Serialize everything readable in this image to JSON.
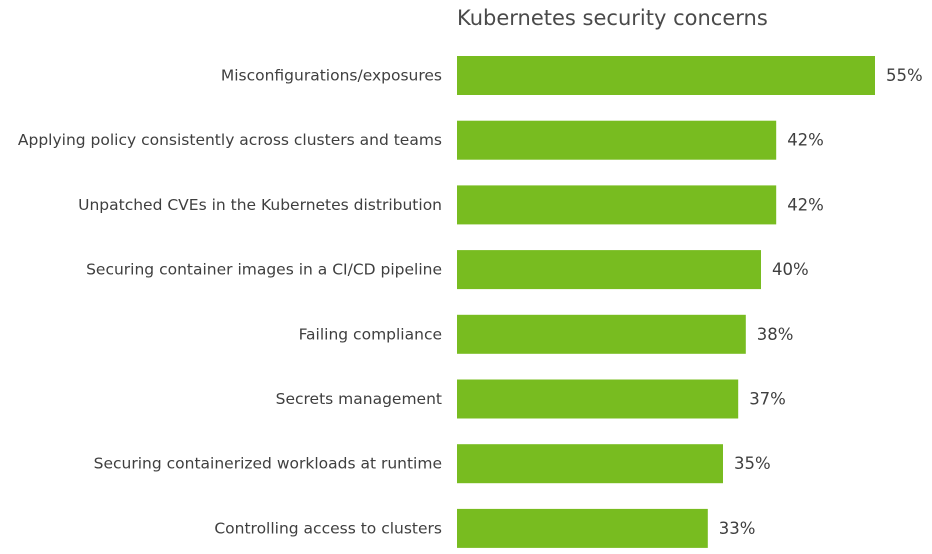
{
  "chart_data": {
    "type": "bar",
    "orientation": "horizontal",
    "title": "Kubernetes security concerns",
    "categories": [
      "Misconfigurations/exposures",
      "Applying policy consistently across clusters and teams",
      "Unpatched CVEs in the Kubernetes distribution",
      "Securing container images in a CI/CD pipeline",
      "Failing compliance",
      "Secrets management",
      "Securing containerized workloads at runtime",
      "Controlling access to clusters"
    ],
    "values": [
      55,
      42,
      42,
      40,
      38,
      37,
      35,
      33
    ],
    "value_labels": [
      "55%",
      "42%",
      "42%",
      "40%",
      "38%",
      "37%",
      "35%",
      "33%"
    ],
    "unit": "%",
    "xlim": [
      0,
      55
    ],
    "bar_color": "#78bc20",
    "grid": false,
    "legend": "none"
  }
}
